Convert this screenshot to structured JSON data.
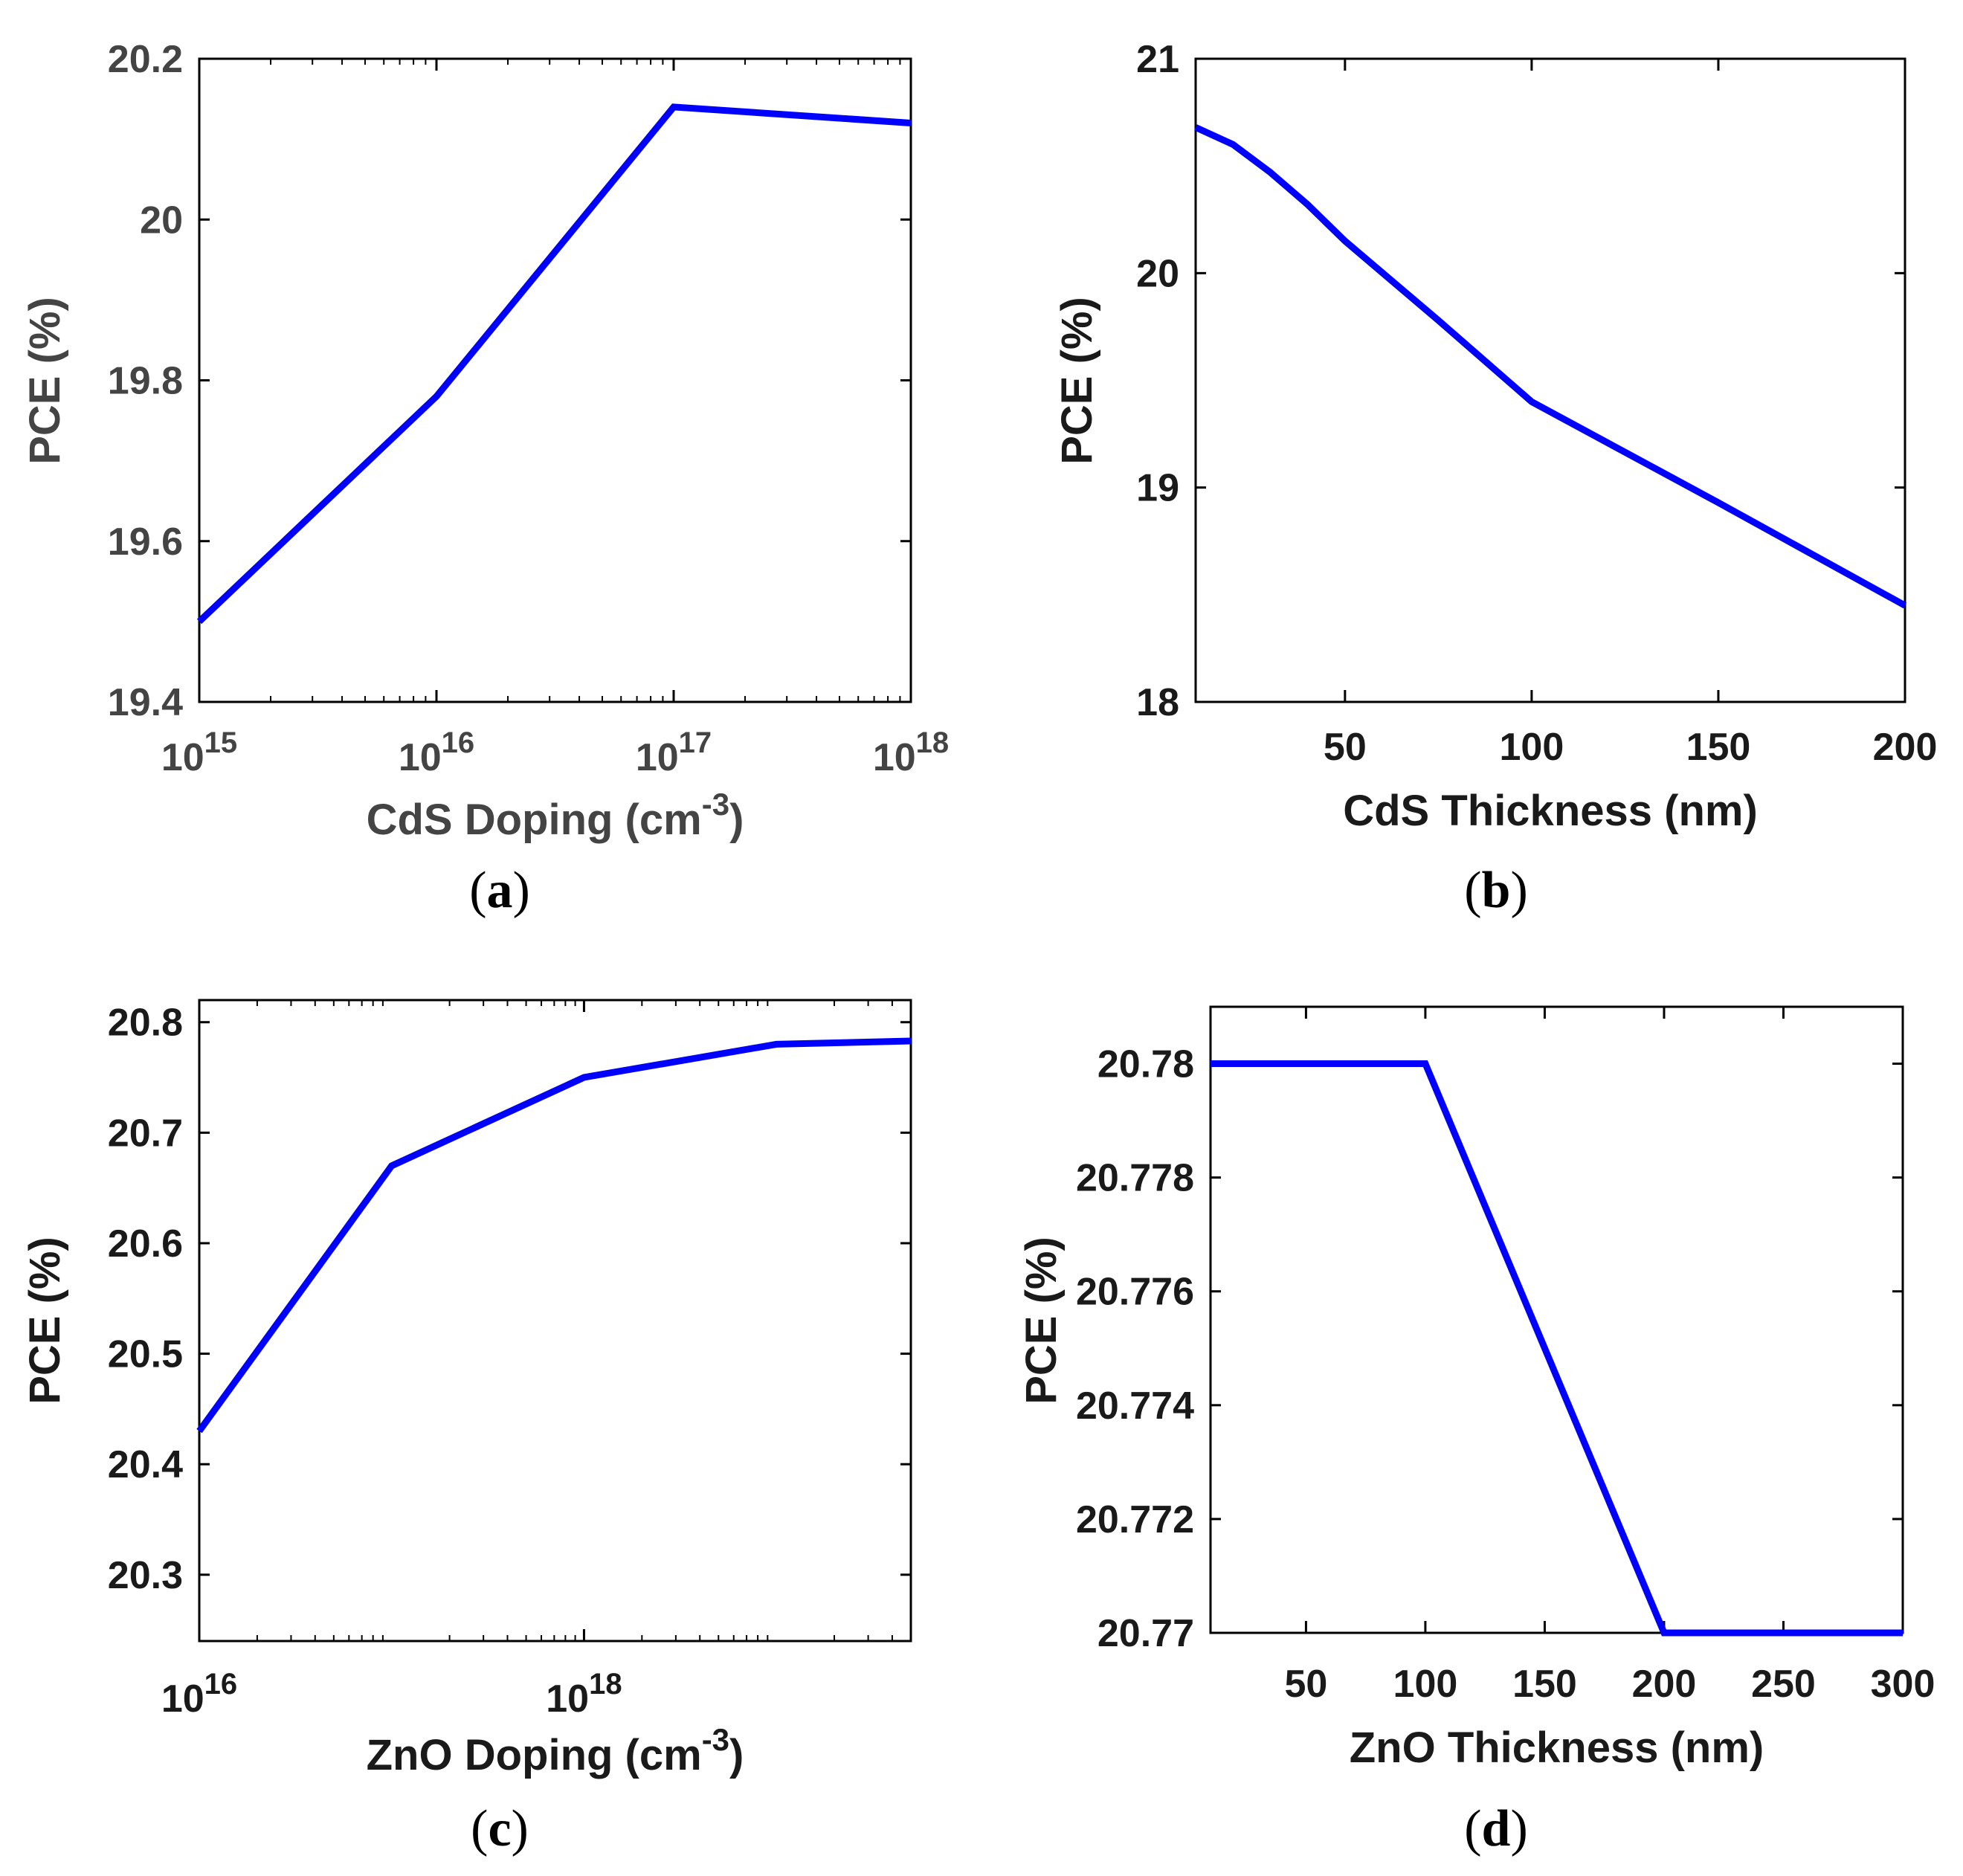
{
  "chart_data": [
    {
      "panel": "(a)",
      "caption_open": "(",
      "caption_letter": "a",
      "caption_close": ")",
      "type": "line",
      "xscale": "log",
      "xlabel_main": "CdS Doping (cm",
      "xlabel_sup": "-3",
      "xlabel_tail": ")",
      "ylabel": "PCE (%)",
      "xlim": [
        1000000000000000.0,
        1e+18
      ],
      "ylim": [
        19.4,
        20.2
      ],
      "x_ticks": [
        {
          "value": 1000000000000000.0,
          "base": "10",
          "exp": "15"
        },
        {
          "value": 1e+16,
          "base": "10",
          "exp": "16"
        },
        {
          "value": 1e+17,
          "base": "10",
          "exp": "17"
        },
        {
          "value": 1e+18,
          "base": "10",
          "exp": "18"
        }
      ],
      "y_ticks": [
        {
          "value": 19.4,
          "label": "19.4"
        },
        {
          "value": 19.6,
          "label": "19.6"
        },
        {
          "value": 19.8,
          "label": "19.8"
        },
        {
          "value": 20.0,
          "label": "20"
        },
        {
          "value": 20.2,
          "label": "20.2"
        }
      ],
      "minor_x_log": true,
      "color": "#0000ff",
      "series": [
        {
          "name": "PCE",
          "x": [
            1000000000000000.0,
            1e+16,
            1e+17,
            1e+18
          ],
          "y": [
            19.5,
            19.78,
            20.14,
            20.12
          ]
        }
      ]
    },
    {
      "panel": "(b)",
      "caption_open": "(",
      "caption_letter": "b",
      "caption_close": ")",
      "type": "line",
      "xscale": "linear",
      "xlabel_main": "CdS Thickness (nm)",
      "xlabel_sup": "",
      "xlabel_tail": "",
      "ylabel": "PCE (%)",
      "xlim": [
        10,
        200
      ],
      "ylim": [
        18,
        21
      ],
      "x_ticks": [
        {
          "value": 50,
          "label": "50"
        },
        {
          "value": 100,
          "label": "100"
        },
        {
          "value": 150,
          "label": "150"
        },
        {
          "value": 200,
          "label": "200"
        }
      ],
      "y_ticks": [
        {
          "value": 18,
          "label": "18"
        },
        {
          "value": 19,
          "label": "19"
        },
        {
          "value": 20,
          "label": "20"
        },
        {
          "value": 21,
          "label": "21"
        }
      ],
      "minor_x_log": false,
      "color": "#0000ff",
      "series": [
        {
          "name": "PCE",
          "x": [
            10,
            20,
            30,
            40,
            50,
            75,
            100,
            150,
            200
          ],
          "y": [
            20.68,
            20.6,
            20.47,
            20.32,
            20.15,
            19.78,
            19.4,
            18.93,
            18.45
          ]
        }
      ]
    },
    {
      "panel": "(c)",
      "caption_open": "(",
      "caption_letter": "c",
      "caption_close": ")",
      "type": "line",
      "xscale": "log",
      "xlabel_main": "ZnO Doping (cm",
      "xlabel_sup": "-3",
      "xlabel_tail": ")",
      "ylabel": "PCE (%)",
      "xlim": [
        1e+16,
        5e+19
      ],
      "ylim": [
        20.24,
        20.82
      ],
      "x_ticks": [
        {
          "value": 1e+16,
          "base": "10",
          "exp": "16"
        },
        {
          "value": 1e+18,
          "base": "10",
          "exp": "18"
        }
      ],
      "y_ticks": [
        {
          "value": 20.3,
          "label": "20.3"
        },
        {
          "value": 20.4,
          "label": "20.4"
        },
        {
          "value": 20.5,
          "label": "20.5"
        },
        {
          "value": 20.6,
          "label": "20.6"
        },
        {
          "value": 20.7,
          "label": "20.7"
        },
        {
          "value": 20.8,
          "label": "20.8"
        }
      ],
      "minor_x_log": true,
      "color": "#0000ff",
      "series": [
        {
          "name": "PCE",
          "x": [
            1e+16,
            1e+17,
            1e+18,
            1e+19,
            5e+19
          ],
          "y": [
            20.43,
            20.67,
            20.75,
            20.78,
            20.783
          ]
        }
      ]
    },
    {
      "panel": "(d)",
      "caption_open": "(",
      "caption_letter": "d",
      "caption_close": ")",
      "type": "line",
      "xscale": "linear",
      "xlabel_main": "ZnO Thickness (nm)",
      "xlabel_sup": "",
      "xlabel_tail": "",
      "ylabel": "PCE (%)",
      "xlim": [
        10,
        300
      ],
      "ylim": [
        20.77,
        20.781
      ],
      "x_ticks": [
        {
          "value": 50,
          "label": "50"
        },
        {
          "value": 100,
          "label": "100"
        },
        {
          "value": 150,
          "label": "150"
        },
        {
          "value": 200,
          "label": "200"
        },
        {
          "value": 250,
          "label": "250"
        },
        {
          "value": 300,
          "label": "300"
        }
      ],
      "y_ticks": [
        {
          "value": 20.77,
          "label": "20.77"
        },
        {
          "value": 20.772,
          "label": "20.772"
        },
        {
          "value": 20.774,
          "label": "20.774"
        },
        {
          "value": 20.776,
          "label": "20.776"
        },
        {
          "value": 20.778,
          "label": "20.778"
        },
        {
          "value": 20.78,
          "label": "20.78"
        }
      ],
      "minor_x_log": false,
      "color": "#0000ff",
      "series": [
        {
          "name": "PCE",
          "x": [
            10,
            100,
            200,
            300
          ],
          "y": [
            20.78,
            20.78,
            20.77,
            20.77
          ]
        }
      ]
    }
  ]
}
